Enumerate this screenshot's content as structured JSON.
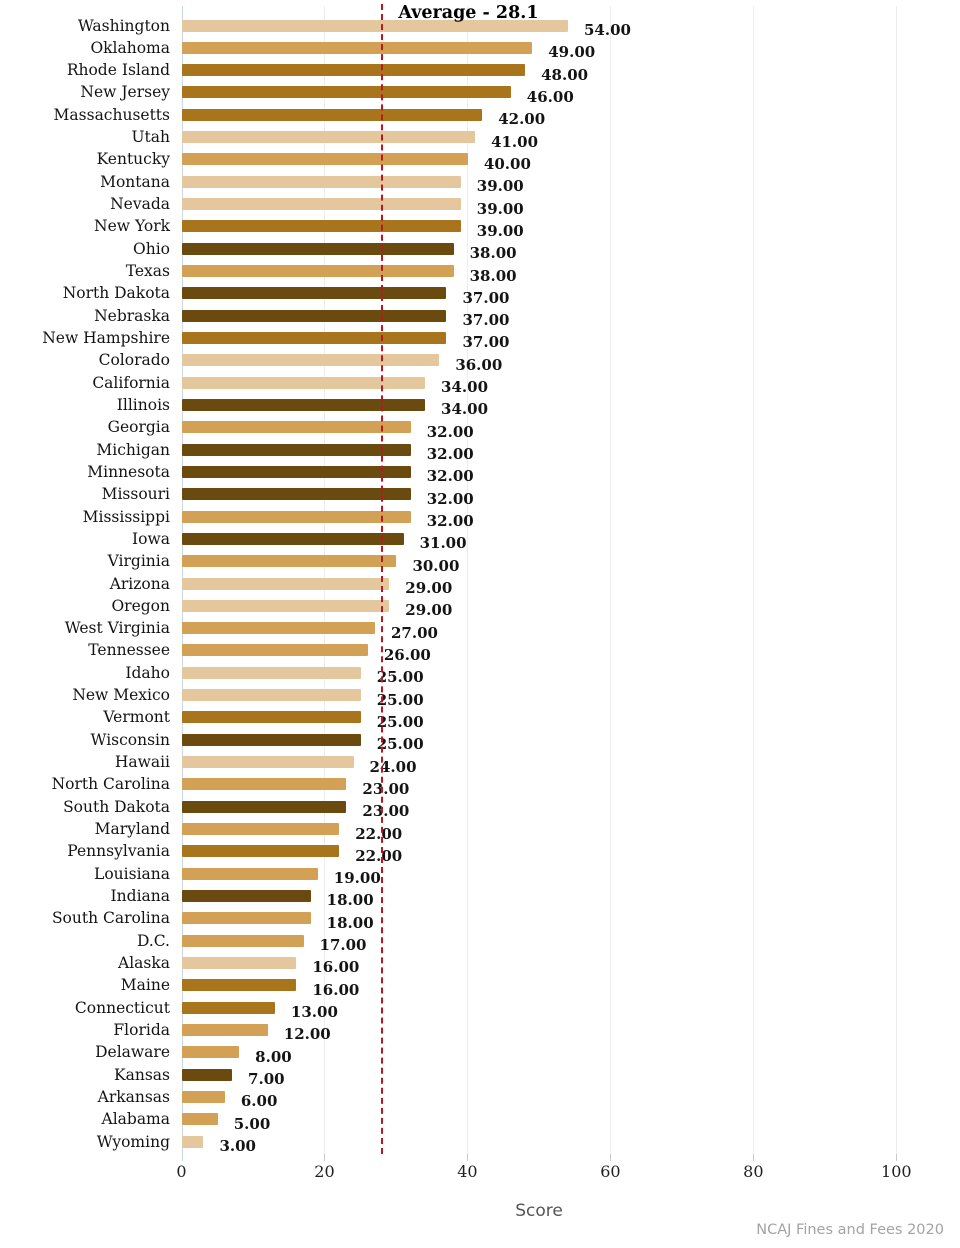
{
  "chart_data": {
    "type": "bar",
    "orientation": "horizontal",
    "xlabel": "Score",
    "xlim": [
      0,
      100
    ],
    "x_ticks": [
      0,
      20,
      40,
      60,
      80,
      100
    ],
    "value_decimals": 2,
    "grid": true,
    "annotation": {
      "label": "Average - 28.1",
      "value": 28.1
    },
    "source": "NCAJ Fines and Fees 2020",
    "palette": {
      "west": "#e5c79d",
      "south": "#d2a156",
      "northeast": "#a8751c",
      "midwest": "#6b4a0f"
    },
    "line_color": "#bb1722",
    "rows": [
      {
        "state": "Washington",
        "value": 54,
        "region": "west"
      },
      {
        "state": "Oklahoma",
        "value": 49,
        "region": "south"
      },
      {
        "state": "Rhode Island",
        "value": 48,
        "region": "northeast"
      },
      {
        "state": "New Jersey",
        "value": 46,
        "region": "northeast"
      },
      {
        "state": "Massachusetts",
        "value": 42,
        "region": "northeast"
      },
      {
        "state": "Utah",
        "value": 41,
        "region": "west"
      },
      {
        "state": "Kentucky",
        "value": 40,
        "region": "south"
      },
      {
        "state": "Montana",
        "value": 39,
        "region": "west"
      },
      {
        "state": "Nevada",
        "value": 39,
        "region": "west"
      },
      {
        "state": "New York",
        "value": 39,
        "region": "northeast"
      },
      {
        "state": "Ohio",
        "value": 38,
        "region": "midwest"
      },
      {
        "state": "Texas",
        "value": 38,
        "region": "south"
      },
      {
        "state": "North Dakota",
        "value": 37,
        "region": "midwest"
      },
      {
        "state": "Nebraska",
        "value": 37,
        "region": "midwest"
      },
      {
        "state": "New Hampshire",
        "value": 37,
        "region": "northeast"
      },
      {
        "state": "Colorado",
        "value": 36,
        "region": "west"
      },
      {
        "state": "California",
        "value": 34,
        "region": "west"
      },
      {
        "state": "Illinois",
        "value": 34,
        "region": "midwest"
      },
      {
        "state": "Georgia",
        "value": 32,
        "region": "south"
      },
      {
        "state": "Michigan",
        "value": 32,
        "region": "midwest"
      },
      {
        "state": "Minnesota",
        "value": 32,
        "region": "midwest"
      },
      {
        "state": "Missouri",
        "value": 32,
        "region": "midwest"
      },
      {
        "state": "Mississippi",
        "value": 32,
        "region": "south"
      },
      {
        "state": "Iowa",
        "value": 31,
        "region": "midwest"
      },
      {
        "state": "Virginia",
        "value": 30,
        "region": "south"
      },
      {
        "state": "Arizona",
        "value": 29,
        "region": "west"
      },
      {
        "state": "Oregon",
        "value": 29,
        "region": "west"
      },
      {
        "state": "West Virginia",
        "value": 27,
        "region": "south"
      },
      {
        "state": "Tennessee",
        "value": 26,
        "region": "south"
      },
      {
        "state": "Idaho",
        "value": 25,
        "region": "west"
      },
      {
        "state": "New Mexico",
        "value": 25,
        "region": "west"
      },
      {
        "state": "Vermont",
        "value": 25,
        "region": "northeast"
      },
      {
        "state": "Wisconsin",
        "value": 25,
        "region": "midwest"
      },
      {
        "state": "Hawaii",
        "value": 24,
        "region": "west"
      },
      {
        "state": "North Carolina",
        "value": 23,
        "region": "south"
      },
      {
        "state": "South Dakota",
        "value": 23,
        "region": "midwest"
      },
      {
        "state": "Maryland",
        "value": 22,
        "region": "south"
      },
      {
        "state": "Pennsylvania",
        "value": 22,
        "region": "northeast"
      },
      {
        "state": "Louisiana",
        "value": 19,
        "region": "south"
      },
      {
        "state": "Indiana",
        "value": 18,
        "region": "midwest"
      },
      {
        "state": "South Carolina",
        "value": 18,
        "region": "south"
      },
      {
        "state": "D.C.",
        "value": 17,
        "region": "south"
      },
      {
        "state": "Alaska",
        "value": 16,
        "region": "west"
      },
      {
        "state": "Maine",
        "value": 16,
        "region": "northeast"
      },
      {
        "state": "Connecticut",
        "value": 13,
        "region": "northeast"
      },
      {
        "state": "Florida",
        "value": 12,
        "region": "south"
      },
      {
        "state": "Delaware",
        "value": 8,
        "region": "south"
      },
      {
        "state": "Kansas",
        "value": 7,
        "region": "midwest"
      },
      {
        "state": "Arkansas",
        "value": 6,
        "region": "south"
      },
      {
        "state": "Alabama",
        "value": 5,
        "region": "south"
      },
      {
        "state": "Wyoming",
        "value": 3,
        "region": "west"
      }
    ]
  }
}
